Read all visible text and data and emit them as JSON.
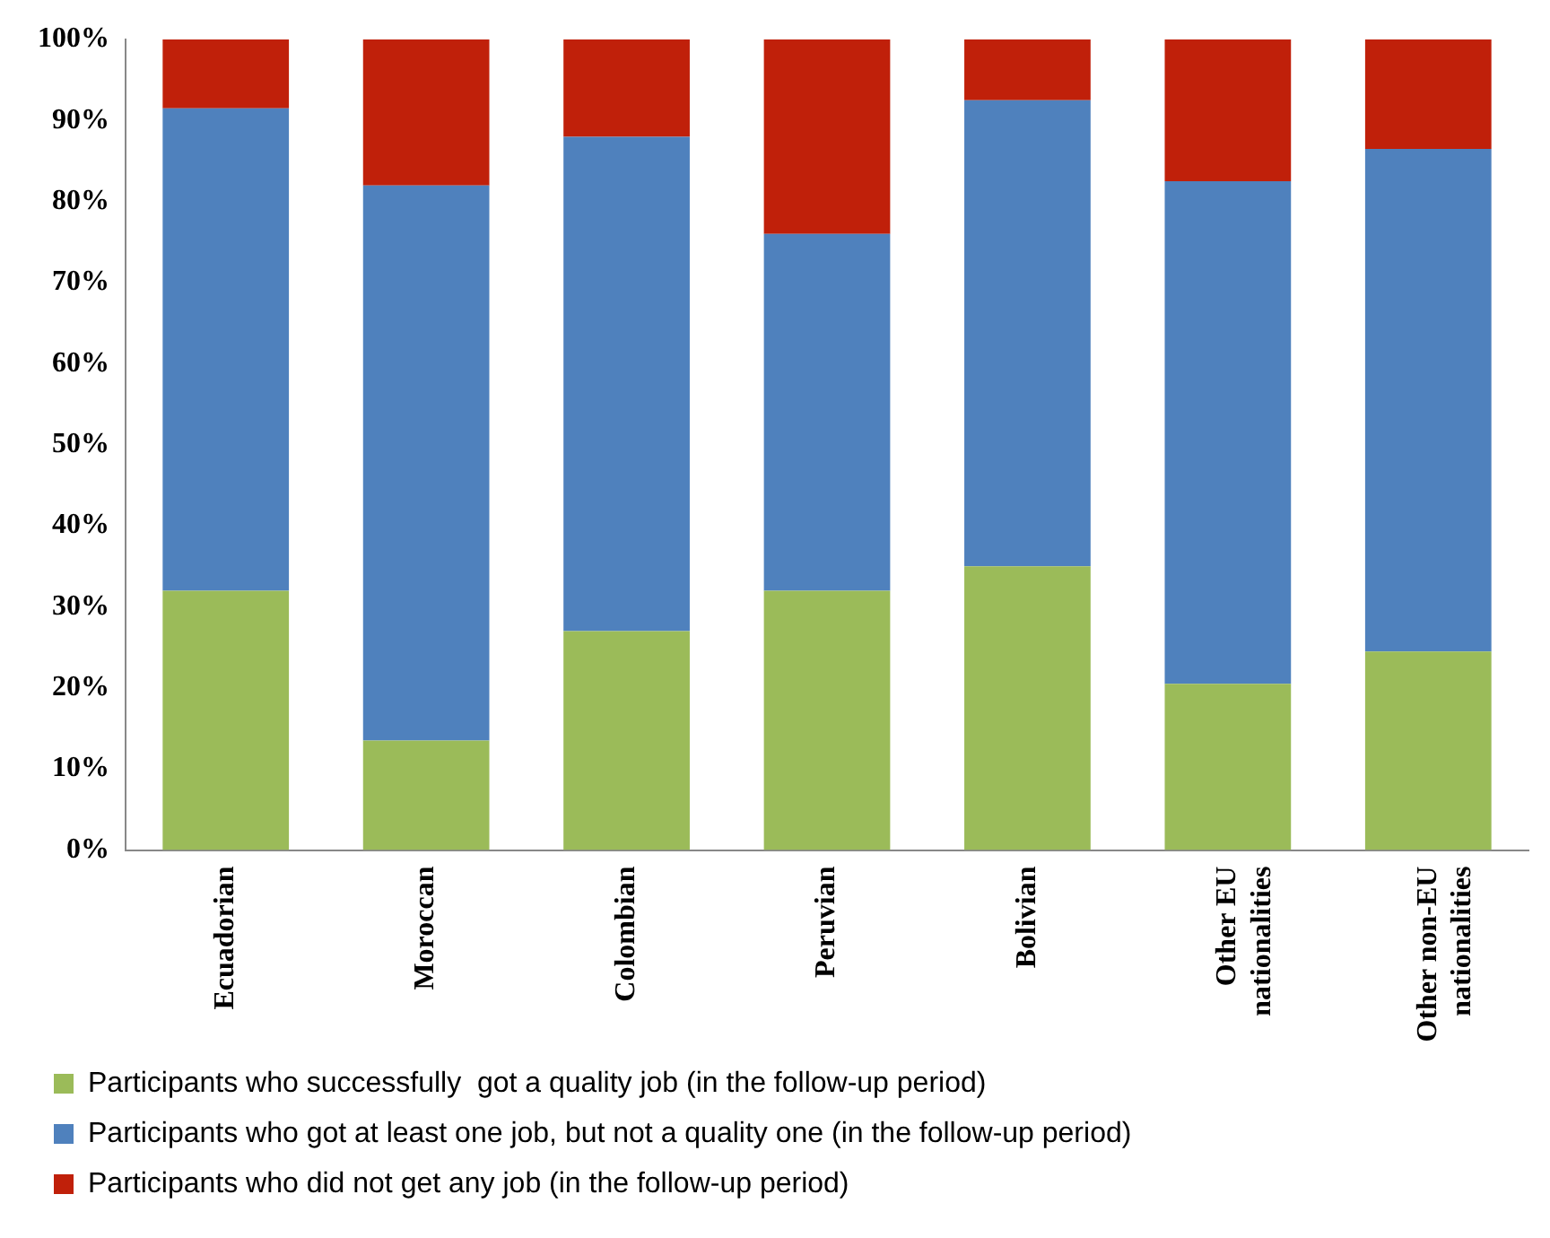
{
  "chart_data": {
    "type": "bar",
    "stacked": true,
    "categories": [
      "Ecuadorian",
      "Moroccan",
      "Colombian",
      "Peruvian",
      "Bolivian",
      "Other EU nationalities",
      "Other non-EU nationalities"
    ],
    "series": [
      {
        "name": "Participants who successfully  got a quality job (in the follow-up period)",
        "color": "#9bbb59",
        "values": [
          32,
          13.5,
          27,
          32,
          35,
          20.5,
          24.5
        ]
      },
      {
        "name": "Participants who got at least one job, but not a quality one (in the follow-up period)",
        "color": "#4f81bd",
        "values": [
          59.5,
          68.5,
          61,
          44,
          57.5,
          62,
          62
        ]
      },
      {
        "name": "Participants who did not get any job (in the follow-up period)",
        "color": "#c0200a",
        "values": [
          8.5,
          18,
          12,
          24,
          7.5,
          17.5,
          13.5
        ]
      }
    ],
    "ylim": [
      0,
      100
    ],
    "yticks": [
      {
        "value": 0,
        "label": "0%"
      },
      {
        "value": 10,
        "label": "10%"
      },
      {
        "value": 20,
        "label": "20%"
      },
      {
        "value": 30,
        "label": "30%"
      },
      {
        "value": 40,
        "label": "40%"
      },
      {
        "value": 50,
        "label": "50%"
      },
      {
        "value": 60,
        "label": "60%"
      },
      {
        "value": 70,
        "label": "70%"
      },
      {
        "value": 80,
        "label": "80%"
      },
      {
        "value": 90,
        "label": "90%"
      },
      {
        "value": 100,
        "label": "100%"
      }
    ],
    "grid": false,
    "legend": "bottom"
  }
}
